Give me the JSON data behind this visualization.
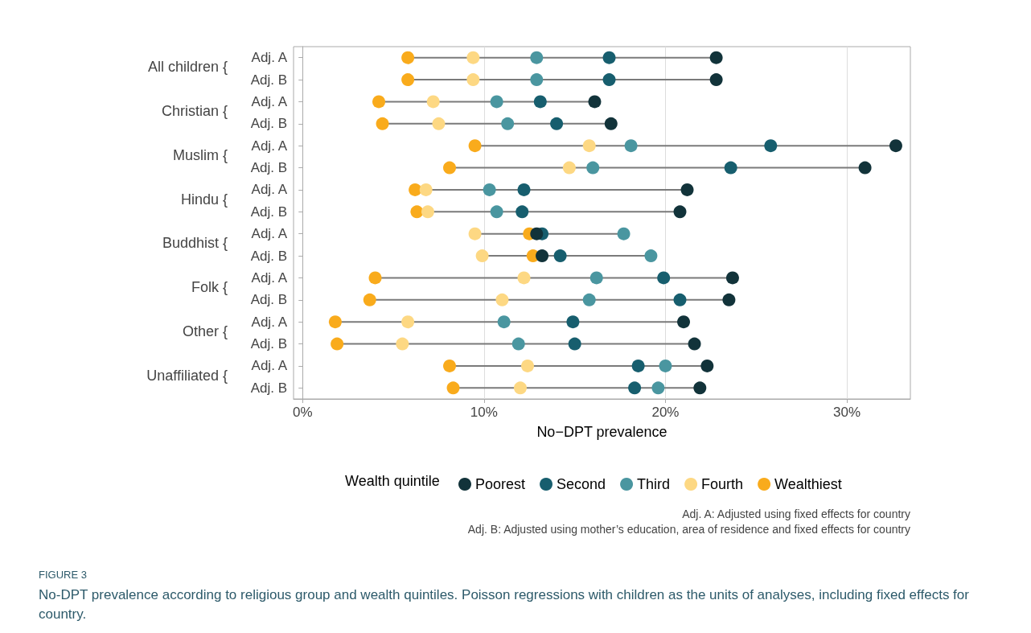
{
  "chart_data": {
    "type": "scatter",
    "orientation": "horizontal",
    "title": "FIGURE 3",
    "subtitle": "No-DPT prevalence according to religious group and wealth quintiles. Poisson regressions with children as the units of analyses, including fixed effects for country.",
    "xlabel": "No−DPT prevalence",
    "legend_title": "Wealth quintile",
    "categories": [
      "Adj. A",
      "Adj. B",
      "Adj. A",
      "Adj. B",
      "Adj. A",
      "Adj. B",
      "Adj. A",
      "Adj. B",
      "Adj. A",
      "Adj. B",
      "Adj. A",
      "Adj. B",
      "Adj. A",
      "Adj. B",
      "Adj. A",
      "Adj. B"
    ],
    "series": [
      {
        "name": "Poorest",
        "color": "#12333a",
        "values": [
          22.8,
          22.8,
          16.1,
          17.0,
          32.7,
          31.0,
          21.2,
          20.8,
          12.9,
          13.2,
          23.7,
          23.5,
          21.0,
          21.6,
          22.3,
          21.9
        ]
      },
      {
        "name": "Second",
        "color": "#175e6e",
        "values": [
          16.9,
          16.9,
          13.1,
          14.0,
          25.8,
          23.6,
          12.2,
          12.1,
          13.2,
          14.2,
          19.9,
          20.8,
          14.9,
          15.0,
          18.5,
          18.3
        ]
      },
      {
        "name": "Third",
        "color": "#4a96a0",
        "values": [
          12.9,
          12.9,
          10.7,
          11.3,
          18.1,
          16.0,
          10.3,
          10.7,
          17.7,
          19.2,
          16.2,
          15.8,
          11.1,
          11.9,
          20.0,
          19.6
        ]
      },
      {
        "name": "Fourth",
        "color": "#fdd883",
        "values": [
          9.4,
          9.4,
          7.2,
          7.5,
          15.8,
          14.7,
          6.8,
          6.9,
          9.5,
          9.9,
          12.2,
          11.0,
          5.8,
          5.5,
          12.4,
          12.0
        ]
      },
      {
        "name": "Wealthiest",
        "color": "#f9ab1c",
        "values": [
          5.8,
          5.8,
          4.2,
          4.4,
          9.5,
          8.1,
          6.2,
          6.3,
          12.5,
          12.7,
          4.0,
          3.7,
          1.8,
          1.9,
          8.1,
          8.3
        ]
      }
    ],
    "xlim": [
      -0.5,
      33.5
    ],
    "xticks": [
      {
        "value": 0,
        "label": "0%"
      },
      {
        "value": 10,
        "label": "10%"
      },
      {
        "value": 20,
        "label": "20%"
      },
      {
        "value": 30,
        "label": "30%"
      }
    ],
    "annotations": [
      "All children {",
      "Christian {",
      "Muslim {",
      "Hindu {",
      "Buddhist {",
      "Folk {",
      "Other {",
      "Unaffiliated {",
      "Adj. A: Adjusted using fixed effects for country",
      "Adj. B: Adjusted using mother’s education, area of residence and fixed effects for country"
    ],
    "grid": "x",
    "legend": "bottom",
    "marker": "circle"
  }
}
